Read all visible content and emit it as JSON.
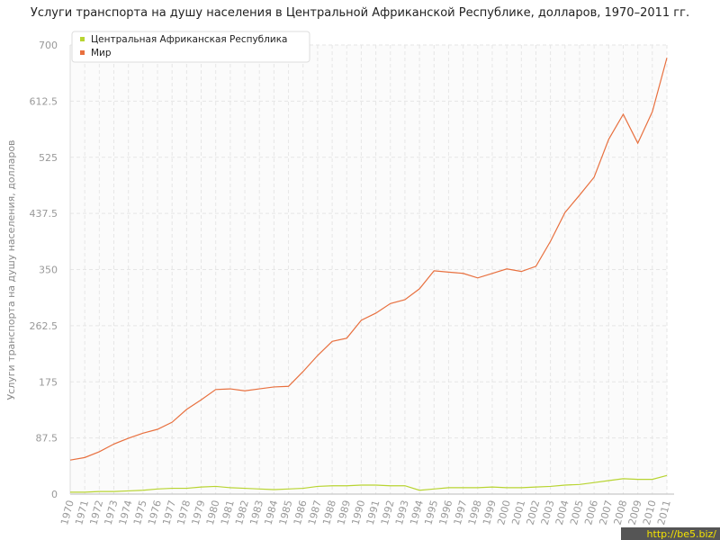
{
  "chart_data": {
    "type": "line",
    "title": "Услуги транспорта на душу населения в Центральной Африканской Республике, долларов, 1970–2011 гг.",
    "y_label": "Услуги транспорта на душу населения, долларов",
    "watermark": "http://be5.biz/",
    "categories": [
      "1970",
      "1971",
      "1972",
      "1973",
      "1974",
      "1975",
      "1976",
      "1977",
      "1978",
      "1979",
      "1980",
      "1981",
      "1982",
      "1983",
      "1984",
      "1985",
      "1986",
      "1987",
      "1988",
      "1989",
      "1990",
      "1991",
      "1992",
      "1993",
      "1994",
      "1995",
      "1996",
      "1997",
      "1998",
      "1999",
      "2000",
      "2001",
      "2002",
      "2003",
      "2004",
      "2005",
      "2006",
      "2007",
      "2008",
      "2009",
      "2010",
      "2011"
    ],
    "series": [
      {
        "name": "Центральная Африканская Республика",
        "color": "#b8d431",
        "values": [
          3,
          3,
          4,
          4,
          5,
          6,
          8,
          9,
          9,
          11,
          12,
          10,
          9,
          8,
          7,
          8,
          9,
          12,
          13,
          13,
          14,
          14,
          13,
          13,
          6,
          8,
          10,
          10,
          10,
          11,
          10,
          10,
          11,
          12,
          14,
          15,
          18,
          21,
          24,
          23,
          23,
          29
        ]
      },
      {
        "name": "Мир",
        "color": "#e8703f",
        "values": [
          53,
          57,
          66,
          78,
          87,
          95,
          101,
          112,
          132,
          147,
          163,
          164,
          161,
          164,
          167,
          168,
          191,
          216,
          238,
          243,
          271,
          282,
          297,
          303,
          320,
          348,
          346,
          344,
          337,
          344,
          351,
          347,
          355,
          394,
          439,
          466,
          494,
          553,
          592,
          547,
          596,
          680
        ]
      }
    ],
    "ylim": [
      0,
      700
    ],
    "yticks": [
      0,
      87.5,
      175,
      262.5,
      350,
      437.5,
      525,
      612.5,
      700
    ],
    "grid": true,
    "legend": "top-left"
  }
}
